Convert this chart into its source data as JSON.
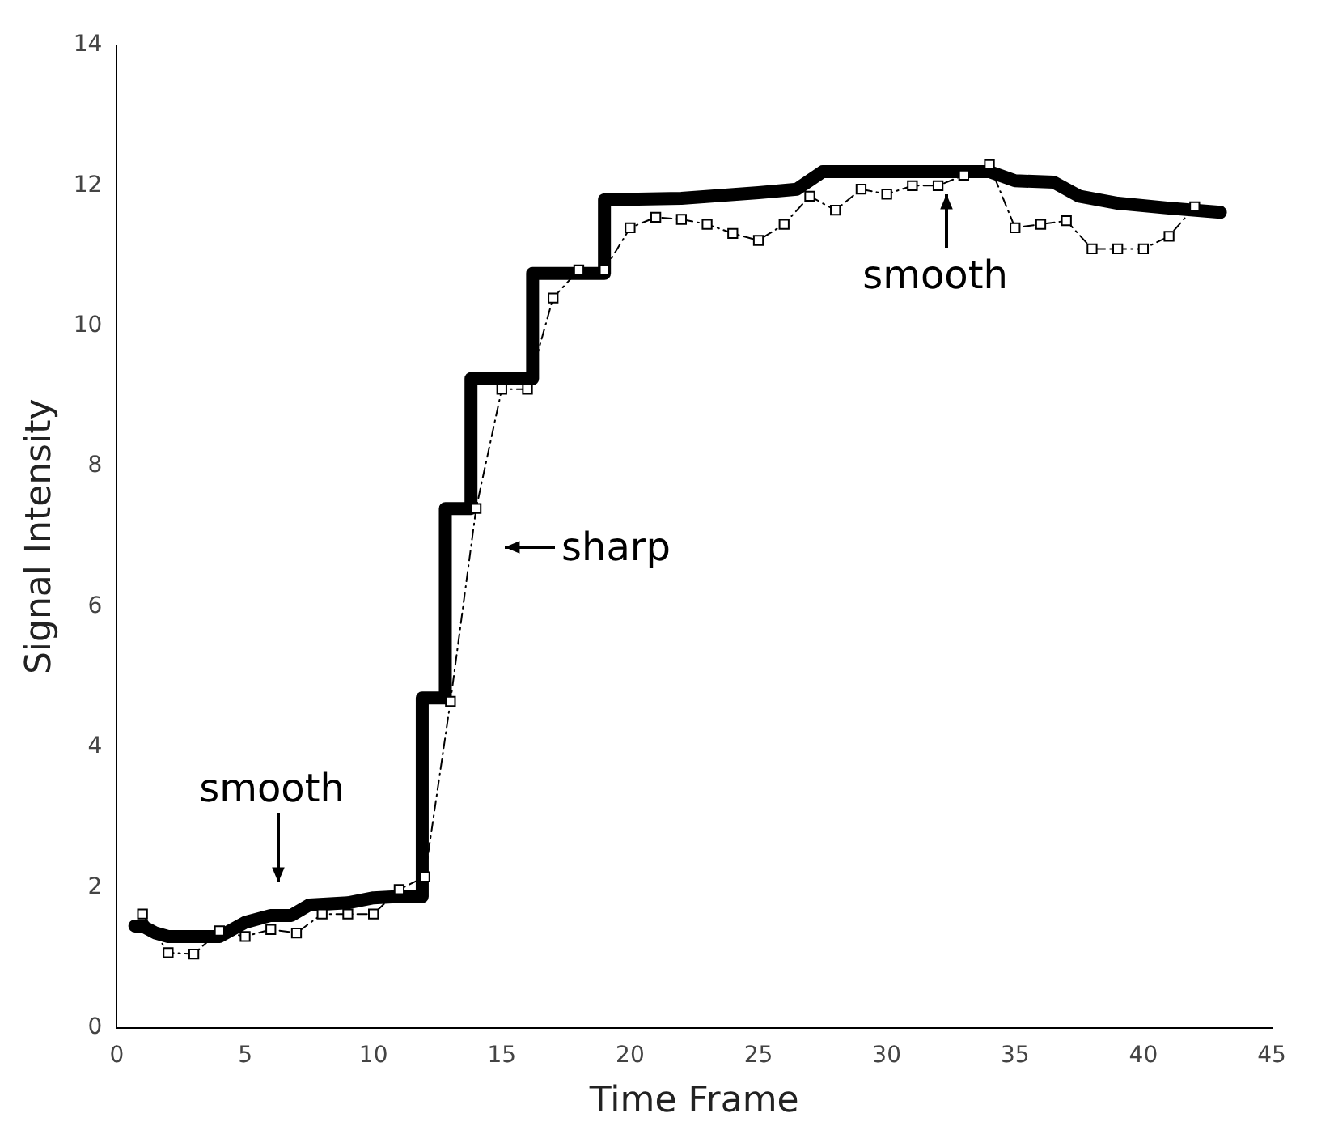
{
  "chart_data": {
    "type": "line",
    "xlabel": "Time Frame",
    "ylabel": "Signal Intensity",
    "xlim": [
      0,
      45
    ],
    "xticks": [
      0,
      5,
      10,
      15,
      20,
      25,
      30,
      35,
      40,
      45
    ],
    "ylim": [
      0,
      14
    ],
    "yticks": [
      0,
      2,
      4,
      6,
      8,
      10,
      12,
      14
    ],
    "grid": false,
    "legend": false,
    "series": [
      {
        "color": "#000000",
        "marker": "none",
        "line_style": "solid",
        "x": [
          0.7,
          1,
          1.5,
          2,
          4,
          4.5,
          5,
          6,
          6.8,
          7.5,
          9,
          10,
          11,
          11.9,
          11.9,
          12.8,
          12.8,
          13.8,
          13.8,
          16.2,
          16.2,
          19,
          19,
          22,
          25,
          26.5,
          27.5,
          34,
          35,
          36.5,
          37.5,
          39,
          41,
          43
        ],
        "values": [
          1.45,
          1.45,
          1.35,
          1.3,
          1.3,
          1.4,
          1.5,
          1.6,
          1.6,
          1.75,
          1.78,
          1.85,
          1.87,
          1.87,
          4.7,
          4.7,
          7.4,
          7.4,
          9.25,
          9.25,
          10.75,
          10.75,
          11.8,
          11.82,
          11.9,
          11.95,
          12.2,
          12.2,
          12.07,
          12.05,
          11.85,
          11.75,
          11.68,
          11.62
        ]
      },
      {
        "color": "#000000",
        "marker": "square",
        "line_style": "dashed",
        "x": [
          1,
          2,
          3,
          4,
          5,
          6,
          7,
          8,
          9,
          10,
          11,
          12,
          13,
          14,
          15,
          16,
          17,
          18,
          19,
          20,
          21,
          22,
          23,
          24,
          25,
          26,
          27,
          28,
          29,
          30,
          31,
          32,
          33,
          34,
          35,
          36,
          37,
          38,
          39,
          40,
          41,
          42
        ],
        "values": [
          1.62,
          1.07,
          1.05,
          1.38,
          1.3,
          1.4,
          1.35,
          1.62,
          1.62,
          1.62,
          1.97,
          2.15,
          4.65,
          7.4,
          9.1,
          9.1,
          10.4,
          10.8,
          10.8,
          11.4,
          11.55,
          11.52,
          11.45,
          11.32,
          11.22,
          11.45,
          11.85,
          11.65,
          11.95,
          11.88,
          12.0,
          12.0,
          12.15,
          12.3,
          11.4,
          11.45,
          11.5,
          11.1,
          11.1,
          11.1,
          11.28,
          11.7
        ]
      }
    ],
    "annotations": [
      "smooth",
      "sharp",
      "smooth"
    ]
  }
}
